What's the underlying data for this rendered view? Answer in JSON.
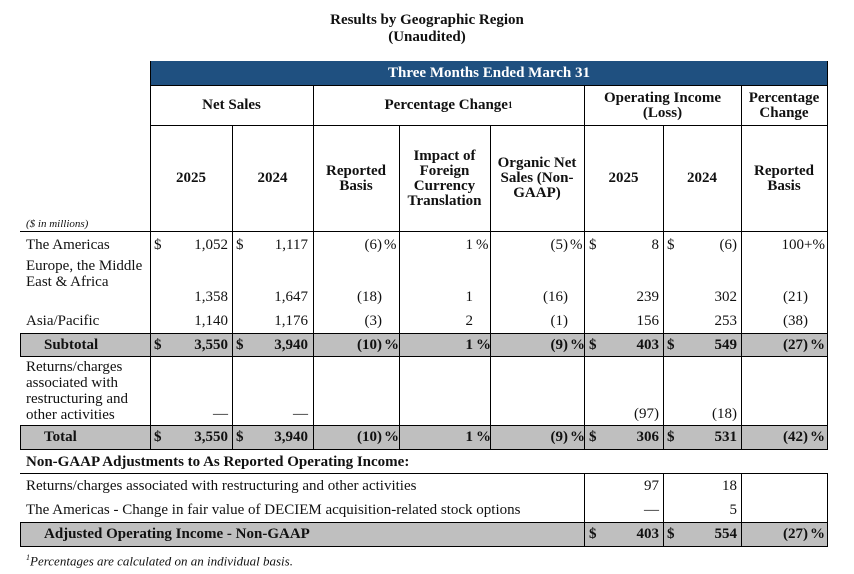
{
  "title": "Results by Geographic Region",
  "subtitle": "(Unaudited)",
  "band": "Three Months Ended March 31",
  "headers": {
    "net_sales": "Net Sales",
    "pct_change": "Percentage Change",
    "pct_change_sup": "1",
    "op_income": "Operating Income (Loss)",
    "pct_change2": "Percentage Change",
    "y2025": "2025",
    "y2024": "2024",
    "reported_basis": "Reported Basis",
    "fx_impact": "Impact of Foreign Currency Translation",
    "organic": "Organic Net Sales (Non-GAAP)",
    "op2025": "2025",
    "op2024": "2024",
    "reported_basis2": "Reported Basis"
  },
  "units": "($ in millions)",
  "rows": [
    {
      "label": "The Americas",
      "ns25": "1,052",
      "ns24": "1,117",
      "rep": "(6)",
      "fx": "1",
      "org": "(5)",
      "oi25": "8",
      "oi24": "(6)",
      "chg": "100+%"
    },
    {
      "label": "Europe, the Middle East & Africa",
      "ns25": "1,358",
      "ns24": "1,647",
      "rep": "(18)",
      "fx": "1",
      "org": "(16)",
      "oi25": "239",
      "oi24": "302",
      "chg": "(21)"
    },
    {
      "label": "Asia/Pacific",
      "ns25": "1,140",
      "ns24": "1,176",
      "rep": "(3)",
      "fx": "2",
      "org": "(1)",
      "oi25": "156",
      "oi24": "253",
      "chg": "(38)"
    }
  ],
  "subtotal": {
    "label": "Subtotal",
    "ns25": "3,550",
    "ns24": "3,940",
    "rep": "(10)",
    "fx": "1",
    "org": "(9)",
    "oi25": "403",
    "oi24": "549",
    "chg": "(27)"
  },
  "returns": {
    "label": "Returns/charges associated with restructuring and other activities",
    "ns25": "—",
    "ns24": "—",
    "oi25": "(97)",
    "oi24": "(18)"
  },
  "total": {
    "label": "Total",
    "ns25": "3,550",
    "ns24": "3,940",
    "rep": "(10)",
    "fx": "1",
    "org": "(9)",
    "oi25": "306",
    "oi24": "531",
    "chg": "(42)"
  },
  "nongaap_header": "Non-GAAP Adjustments to As Reported Operating Income:",
  "adj": [
    {
      "label": "Returns/charges associated with restructuring and other activities",
      "oi25": "97",
      "oi24": "18"
    },
    {
      "label": "The Americas - Change in fair value of DECIEM acquisition-related stock options",
      "oi25": "—",
      "oi24": "5"
    }
  ],
  "adjusted": {
    "label": "Adjusted Operating Income - Non-GAAP",
    "oi25": "403",
    "oi24": "554",
    "chg": "(27)"
  },
  "symbols": {
    "dollar": "$",
    "pct": "%"
  },
  "footnote_sup": "1",
  "footnote": "Percentages are calculated on an individual basis.",
  "colors": {
    "band": "#1f5080",
    "gray": "#bfbfbf"
  }
}
